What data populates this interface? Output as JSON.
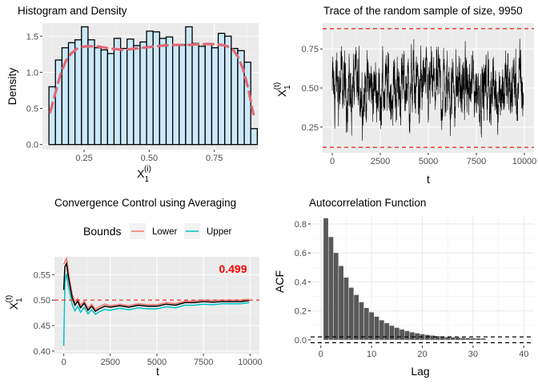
{
  "chart_data": [
    {
      "id": "histogram",
      "type": "bar",
      "title": "Histogram and Density",
      "xlabel": "X",
      "xlabel_sub": "1",
      "xlabel_sup": "(i)",
      "ylabel": "Density",
      "xlim": [
        0.09,
        0.92
      ],
      "ylim": [
        -0.07,
        1.68
      ],
      "xticks": [
        {
          "value": 0.25,
          "label": "0.25"
        },
        {
          "value": 0.5,
          "label": "0.50"
        },
        {
          "value": 0.75,
          "label": "0.75"
        }
      ],
      "yticks": [
        {
          "value": 0,
          "label": "0.0"
        },
        {
          "value": 0.5,
          "label": "0.5"
        },
        {
          "value": 1.0,
          "label": "1.0"
        },
        {
          "value": 1.5,
          "label": "1.5"
        }
      ],
      "bin_start": 0.115,
      "bin_width": 0.025,
      "values": [
        0.8,
        1.17,
        1.34,
        1.41,
        1.45,
        1.63,
        1.45,
        1.34,
        1.31,
        1.26,
        1.47,
        1.33,
        1.46,
        1.37,
        1.42,
        1.57,
        1.56,
        1.47,
        1.49,
        1.38,
        1.38,
        1.63,
        1.4,
        1.36,
        1.4,
        1.34,
        1.54,
        1.5,
        1.33,
        1.3,
        1.14,
        0.22
      ],
      "density": {
        "x": [
          0.12,
          0.14,
          0.16,
          0.18,
          0.2,
          0.22,
          0.24,
          0.26,
          0.3,
          0.35,
          0.4,
          0.45,
          0.5,
          0.55,
          0.6,
          0.65,
          0.7,
          0.75,
          0.78,
          0.8,
          0.82,
          0.84,
          0.86,
          0.88,
          0.9
        ],
        "y": [
          0.45,
          0.72,
          0.98,
          1.16,
          1.26,
          1.32,
          1.35,
          1.36,
          1.36,
          1.33,
          1.31,
          1.33,
          1.35,
          1.37,
          1.38,
          1.38,
          1.39,
          1.39,
          1.38,
          1.36,
          1.32,
          1.22,
          1.05,
          0.78,
          0.42
        ]
      },
      "colors": {
        "bar_fill": "#cce9fb",
        "bar_stroke": "#000000",
        "density": "#e36874"
      }
    },
    {
      "id": "trace",
      "type": "line",
      "title": "Trace of the random sample of size, 9950",
      "xlabel": "t",
      "ylabel": "X",
      "ylabel_sub": "1",
      "ylabel_sup": "(t)",
      "xlim": [
        -500,
        10500
      ],
      "ylim": [
        0.085,
        0.915
      ],
      "xticks": [
        {
          "value": 0,
          "label": "0"
        },
        {
          "value": 2500,
          "label": "2500"
        },
        {
          "value": 5000,
          "label": "5000"
        },
        {
          "value": 7500,
          "label": "7500"
        },
        {
          "value": 10000,
          "label": "10000"
        }
      ],
      "yticks": [
        {
          "value": 0.25,
          "label": "0.25"
        },
        {
          "value": 0.5,
          "label": "0.50"
        },
        {
          "value": 0.75,
          "label": "0.75"
        }
      ],
      "n": 9950,
      "range": [
        0.12,
        0.88
      ],
      "ar": 0.84,
      "hlines": [
        0.12,
        0.88
      ],
      "colors": {
        "line": "#000000",
        "hline": "#e8302a"
      }
    },
    {
      "id": "convergence",
      "type": "line",
      "title": "Convergence Control using Averaging",
      "xlabel": "t",
      "ylabel": "X",
      "ylabel_sub": "1",
      "ylabel_sup": "(t)",
      "legend_title": "Bounds",
      "legend_position": "top",
      "xlim": [
        -500,
        10500
      ],
      "ylim": [
        0.395,
        0.585
      ],
      "xticks": [
        {
          "value": 0,
          "label": "0"
        },
        {
          "value": 2500,
          "label": "2500"
        },
        {
          "value": 5000,
          "label": "5000"
        },
        {
          "value": 7500,
          "label": "7500"
        },
        {
          "value": 10000,
          "label": "10000"
        }
      ],
      "yticks": [
        {
          "value": 0.4,
          "label": "0.40"
        },
        {
          "value": 0.45,
          "label": "0.45"
        },
        {
          "value": 0.5,
          "label": "0.50"
        },
        {
          "value": 0.55,
          "label": "0.55"
        }
      ],
      "hline": 0.5,
      "annotation": "0.499",
      "mean": {
        "x": [
          0,
          60,
          150,
          250,
          350,
          450,
          600,
          750,
          900,
          1100,
          1300,
          1500,
          1700,
          1900,
          2200,
          2500,
          3000,
          3500,
          4000,
          4500,
          5000,
          5500,
          6000,
          6500,
          7000,
          7500,
          8000,
          8500,
          9000,
          9500,
          9950
        ],
        "y": [
          0.52,
          0.565,
          0.572,
          0.545,
          0.525,
          0.505,
          0.49,
          0.498,
          0.485,
          0.494,
          0.48,
          0.488,
          0.478,
          0.483,
          0.488,
          0.486,
          0.489,
          0.486,
          0.49,
          0.488,
          0.488,
          0.492,
          0.49,
          0.495,
          0.495,
          0.497,
          0.496,
          0.497,
          0.497,
          0.497,
          0.499
        ]
      },
      "series": [
        {
          "name": "Lower",
          "color": "#f8766d",
          "offsets": [
            0.05,
            0.01,
            0.01,
            0.01,
            0.008,
            0.007,
            0.006,
            0.005,
            0.005,
            0.004,
            0.004,
            0.004,
            0.004,
            0.004,
            0.004,
            0.003,
            0.003,
            0.003,
            0.003,
            0.003,
            0.003,
            0.003,
            0.003,
            0.003,
            0.003,
            0.003,
            0.003,
            0.003,
            0.003,
            0.003,
            0.003
          ],
          "sign": 1
        },
        {
          "name": "Upper",
          "color": "#00bfc4",
          "offsets": [
            0.11,
            0.03,
            0.02,
            0.018,
            0.015,
            0.013,
            0.011,
            0.01,
            0.009,
            0.008,
            0.007,
            0.007,
            0.006,
            0.006,
            0.006,
            0.006,
            0.005,
            0.005,
            0.005,
            0.005,
            0.005,
            0.005,
            0.005,
            0.005,
            0.005,
            0.005,
            0.005,
            0.004,
            0.004,
            0.004,
            0.004
          ],
          "sign": -1
        }
      ],
      "colors": {
        "mean": "#000000",
        "hline": "#e8302a",
        "annotation": "#ff0000"
      }
    },
    {
      "id": "acf",
      "type": "bar",
      "title": "Autocorrelation Function",
      "xlabel": "Lag",
      "ylabel": "ACF",
      "xlim": [
        -2,
        42
      ],
      "ylim": [
        -0.04,
        0.855
      ],
      "xticks": [
        {
          "value": 0,
          "label": "0"
        },
        {
          "value": 10,
          "label": "10"
        },
        {
          "value": 20,
          "label": "20"
        },
        {
          "value": 30,
          "label": "30"
        },
        {
          "value": 40,
          "label": "40"
        }
      ],
      "yticks": [
        {
          "value": 0,
          "label": "0.0"
        },
        {
          "value": 0.2,
          "label": "0.2"
        },
        {
          "value": 0.4,
          "label": "0.4"
        },
        {
          "value": 0.6,
          "label": "0.6"
        },
        {
          "value": 0.8,
          "label": "0.8"
        }
      ],
      "lags": [
        1,
        2,
        3,
        4,
        5,
        6,
        7,
        8,
        9,
        10,
        11,
        12,
        13,
        14,
        15,
        16,
        17,
        18,
        19,
        20,
        21,
        22,
        23,
        24,
        25,
        26,
        27,
        28,
        29,
        30,
        31,
        32
      ],
      "values": [
        0.84,
        0.71,
        0.6,
        0.51,
        0.43,
        0.36,
        0.31,
        0.26,
        0.22,
        0.19,
        0.16,
        0.135,
        0.115,
        0.097,
        0.083,
        0.071,
        0.061,
        0.052,
        0.045,
        0.039,
        0.034,
        0.029,
        0.025,
        0.022,
        0.019,
        0.017,
        0.015,
        0.013,
        0.012,
        0.011,
        0.01,
        0.009
      ],
      "hlines": [
        0.02,
        -0.02
      ],
      "colors": {
        "bar_fill": "#595959",
        "hline": "#000000"
      }
    }
  ]
}
